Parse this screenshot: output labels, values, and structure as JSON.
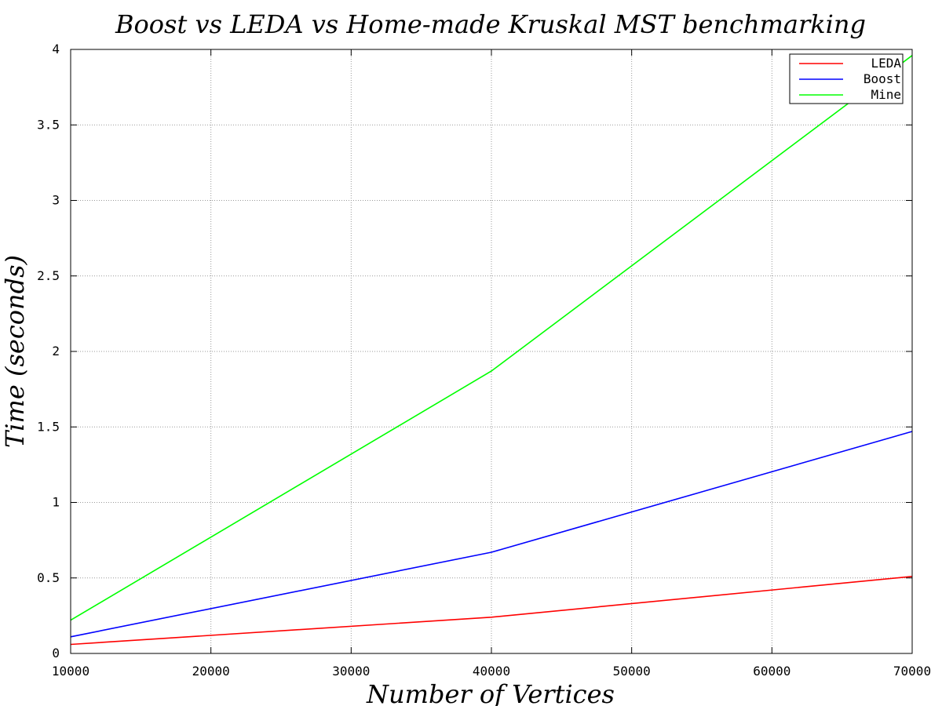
{
  "chart_data": {
    "type": "line",
    "title": "Boost vs LEDA vs Home-made Kruskal MST benchmarking",
    "xlabel": "Number of Vertices",
    "ylabel": "Time (seconds)",
    "x": [
      10000,
      40000,
      70000
    ],
    "xlim": [
      10000,
      70000
    ],
    "ylim": [
      0,
      4
    ],
    "xticks": [
      10000,
      20000,
      30000,
      40000,
      50000,
      60000,
      70000
    ],
    "yticks": [
      0,
      0.5,
      1,
      1.5,
      2,
      2.5,
      3,
      3.5,
      4
    ],
    "xtick_labels": [
      "10000",
      "20000",
      "30000",
      "40000",
      "50000",
      "60000",
      "70000"
    ],
    "ytick_labels": [
      "0",
      "0.5",
      "1",
      "1.5",
      "2",
      "2.5",
      "3",
      "3.5",
      "4"
    ],
    "grid": true,
    "legend_position": "top-right",
    "series": [
      {
        "name": "LEDA",
        "color": "#ff0000",
        "values": [
          0.06,
          0.24,
          0.51
        ]
      },
      {
        "name": "Boost",
        "color": "#0000ff",
        "values": [
          0.11,
          0.67,
          1.47
        ]
      },
      {
        "name": "Mine",
        "color": "#00ff00",
        "values": [
          0.22,
          1.87,
          3.96
        ]
      }
    ]
  }
}
